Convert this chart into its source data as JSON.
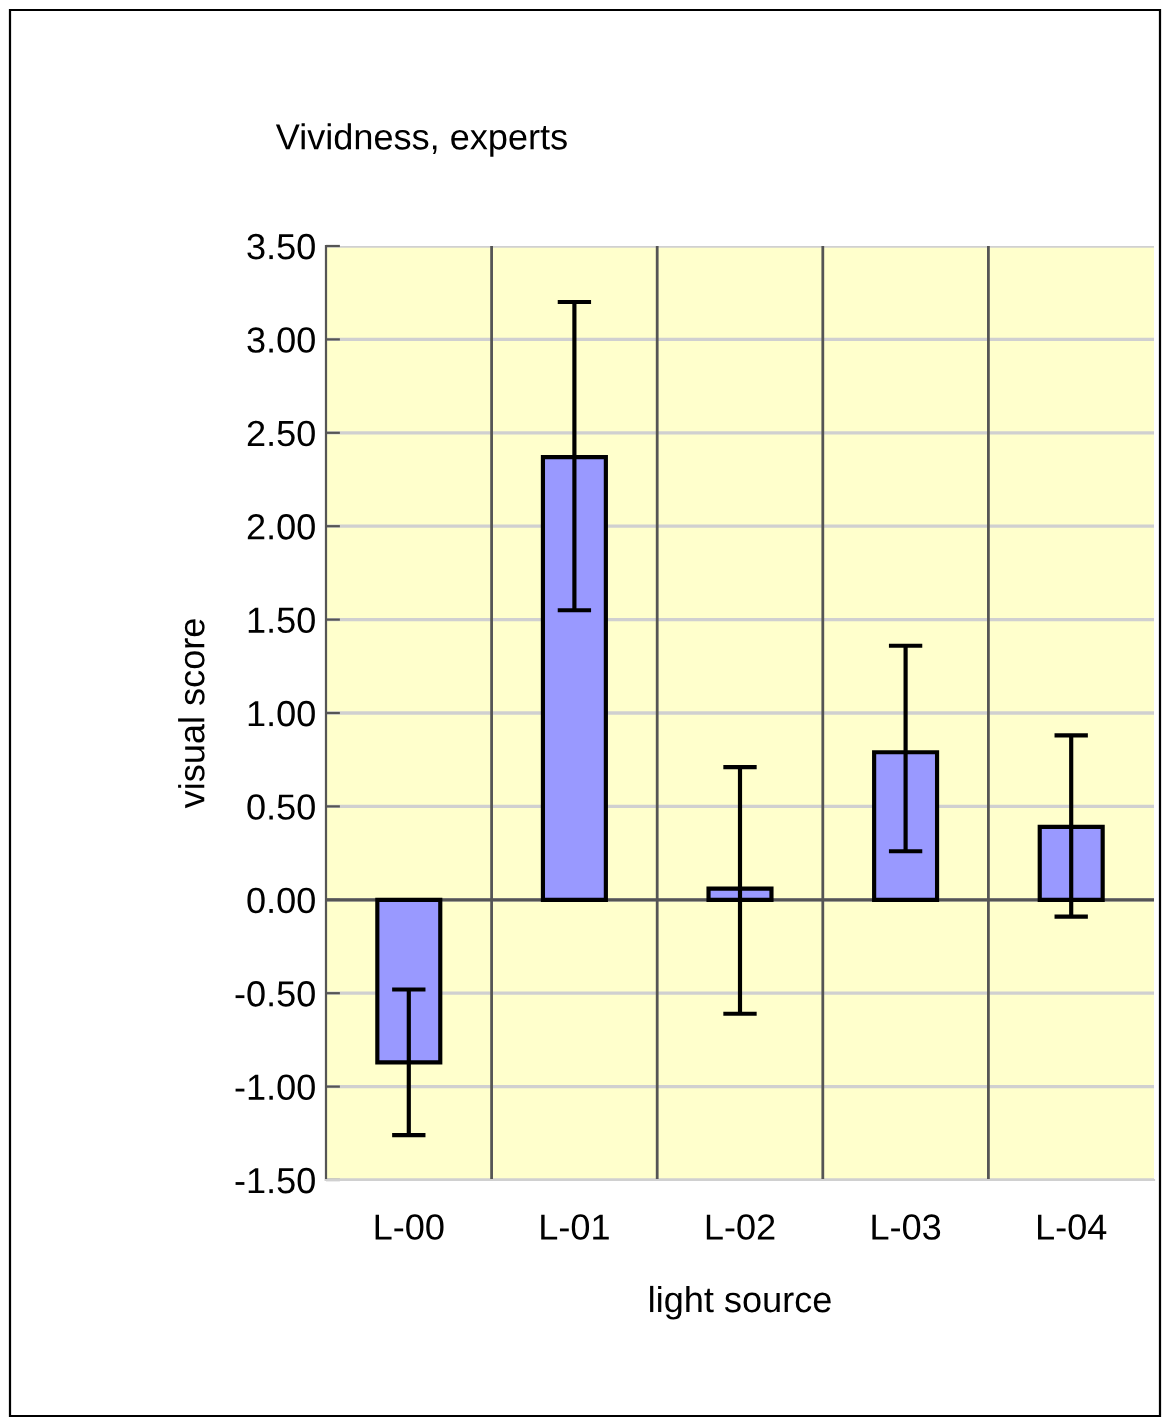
{
  "chart_data": {
    "type": "bar",
    "title": "Vividness, experts",
    "xlabel": "light source",
    "ylabel": "visual score",
    "categories": [
      "L-00",
      "L-01",
      "L-02",
      "L-03",
      "L-04"
    ],
    "values": [
      -0.87,
      2.37,
      0.06,
      0.79,
      0.39
    ],
    "errors": [
      [
        -1.26,
        -0.48
      ],
      [
        1.55,
        3.2
      ],
      [
        -0.61,
        0.71
      ],
      [
        0.26,
        1.36
      ],
      [
        -0.09,
        0.88
      ]
    ],
    "color": "#9999ff",
    "ylim": [
      -1.5,
      3.5
    ],
    "yticks": [
      {
        "value": -1.5,
        "label": "-1.50"
      },
      {
        "value": -1.0,
        "label": "-1.00"
      },
      {
        "value": -0.5,
        "label": "-0.50"
      },
      {
        "value": 0.0,
        "label": "0.00"
      },
      {
        "value": 0.5,
        "label": "0.50"
      },
      {
        "value": 1.0,
        "label": "1.00"
      },
      {
        "value": 1.5,
        "label": "1.50"
      },
      {
        "value": 2.0,
        "label": "2.00"
      },
      {
        "value": 2.5,
        "label": "2.50"
      },
      {
        "value": 3.0,
        "label": "3.00"
      },
      {
        "value": 3.5,
        "label": "3.50"
      }
    ],
    "grid": true
  }
}
